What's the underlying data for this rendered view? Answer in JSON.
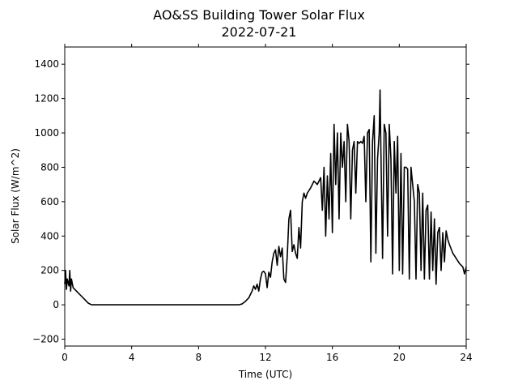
{
  "chart_data": {
    "type": "line",
    "title": "AO&SS Building Tower Solar Flux",
    "subtitle": "2022-07-21",
    "xlabel": "Time (UTC)",
    "ylabel": "Solar Flux (W/m^2)",
    "xlim": [
      0,
      24
    ],
    "ylim": [
      -240,
      1500
    ],
    "xticks": [
      0,
      4,
      8,
      12,
      16,
      20,
      24
    ],
    "yticks": [
      -200,
      0,
      200,
      400,
      600,
      800,
      1000,
      1200,
      1400
    ],
    "grid": false,
    "line_color": "#000000",
    "series": [
      {
        "x": [
          0,
          0.05,
          0.1,
          0.15,
          0.2,
          0.25,
          0.3,
          0.35,
          0.4,
          0.5,
          0.6,
          0.8,
          1.0,
          1.2,
          1.4,
          1.6,
          2,
          4,
          6,
          8,
          10,
          10.4,
          10.6,
          10.8,
          11.0,
          11.2,
          11.3,
          11.4,
          11.5,
          11.6,
          11.7,
          11.8,
          11.9,
          12.0,
          12.1,
          12.2,
          12.3,
          12.4,
          12.5,
          12.6,
          12.7,
          12.8,
          12.9,
          13.0,
          13.1,
          13.2,
          13.3,
          13.4,
          13.5,
          13.6,
          13.7,
          13.8,
          13.9,
          14.0,
          14.1,
          14.2,
          14.3,
          14.4,
          14.5,
          14.7,
          14.9,
          15.1,
          15.3,
          15.4,
          15.5,
          15.6,
          15.7,
          15.8,
          15.9,
          16.0,
          16.1,
          16.2,
          16.3,
          16.4,
          16.5,
          16.6,
          16.7,
          16.8,
          16.9,
          17.0,
          17.1,
          17.2,
          17.3,
          17.4,
          17.5,
          17.6,
          17.7,
          17.8,
          17.9,
          18.0,
          18.1,
          18.2,
          18.3,
          18.4,
          18.5,
          18.6,
          18.7,
          18.8,
          18.85,
          18.9,
          19.0,
          19.1,
          19.2,
          19.3,
          19.4,
          19.5,
          19.6,
          19.7,
          19.8,
          19.9,
          20.0,
          20.1,
          20.2,
          20.3,
          20.4,
          20.5,
          20.6,
          20.7,
          20.8,
          20.9,
          21.0,
          21.1,
          21.2,
          21.3,
          21.4,
          21.5,
          21.6,
          21.7,
          21.8,
          21.9,
          22.0,
          22.1,
          22.2,
          22.3,
          22.4,
          22.5,
          22.6,
          22.7,
          22.8,
          22.9,
          23.0,
          23.2,
          23.4,
          23.6,
          23.8,
          23.9,
          24.0
        ],
        "y": [
          120,
          200,
          90,
          150,
          130,
          110,
          200,
          80,
          150,
          100,
          90,
          70,
          50,
          30,
          10,
          0,
          0,
          0,
          0,
          0,
          0,
          0,
          5,
          20,
          40,
          80,
          110,
          90,
          120,
          80,
          150,
          190,
          195,
          180,
          100,
          190,
          160,
          250,
          300,
          320,
          230,
          340,
          280,
          330,
          150,
          130,
          280,
          500,
          550,
          310,
          350,
          300,
          270,
          450,
          330,
          600,
          650,
          620,
          650,
          680,
          720,
          700,
          740,
          550,
          800,
          400,
          750,
          500,
          880,
          420,
          1050,
          700,
          1000,
          500,
          1000,
          800,
          950,
          600,
          1050,
          950,
          500,
          900,
          950,
          650,
          950,
          940,
          950,
          940,
          980,
          600,
          1000,
          1020,
          250,
          950,
          1100,
          300,
          850,
          1000,
          1250,
          900,
          270,
          1050,
          1000,
          400,
          1050,
          850,
          180,
          950,
          650,
          980,
          200,
          880,
          180,
          800,
          800,
          790,
          150,
          800,
          700,
          600,
          150,
          700,
          650,
          200,
          650,
          150,
          550,
          580,
          150,
          540,
          200,
          500,
          120,
          420,
          450,
          200,
          420,
          250,
          430,
          380,
          350,
          300,
          270,
          240,
          220,
          180,
          220
        ]
      }
    ]
  }
}
